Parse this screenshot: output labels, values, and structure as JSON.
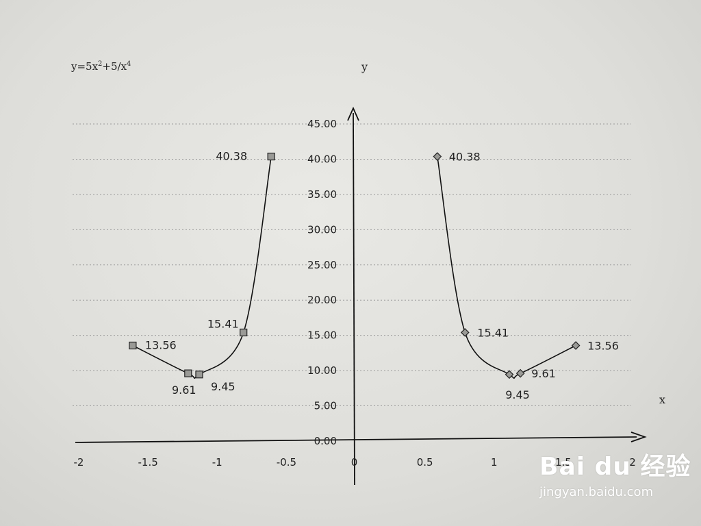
{
  "formula": {
    "base": "y=5x",
    "exp1": "2",
    "mid": "+5/x",
    "exp2": "4"
  },
  "axis_titles": {
    "y": "y",
    "x": "x"
  },
  "watermark": {
    "brand": "Bai du 经验",
    "url": "jingyan.baidu.com"
  },
  "chart_data": {
    "type": "scatter",
    "title": "y=5x²+5/x⁴",
    "xlabel": "x",
    "ylabel": "y",
    "xlim": [
      -2,
      2
    ],
    "ylim": [
      0,
      45
    ],
    "x_ticks": [
      "-2",
      "-1.5",
      "-1",
      "-0.5",
      "0",
      "0.5",
      "1",
      "1.5",
      "2"
    ],
    "y_ticks": [
      "0.00",
      "5.00",
      "10.00",
      "15.00",
      "20.00",
      "25.00",
      "30.00",
      "35.00",
      "40.00",
      "45.00"
    ],
    "grid": "horizontal dotted",
    "series": [
      {
        "marker": "square",
        "x": [
          -1.6,
          -1.2,
          -1.12,
          -0.8,
          -0.6
        ],
        "y": [
          13.56,
          9.61,
          9.45,
          15.41,
          40.38
        ],
        "labels": [
          "13.56",
          "9.61",
          "9.45",
          "15.41",
          "40.38"
        ]
      },
      {
        "marker": "diamond",
        "x": [
          0.6,
          0.8,
          1.12,
          1.2,
          1.6
        ],
        "y": [
          40.38,
          15.41,
          9.45,
          9.61,
          13.56
        ],
        "labels": [
          "40.38",
          "15.41",
          "9.45",
          "9.61",
          "13.56"
        ]
      }
    ]
  }
}
